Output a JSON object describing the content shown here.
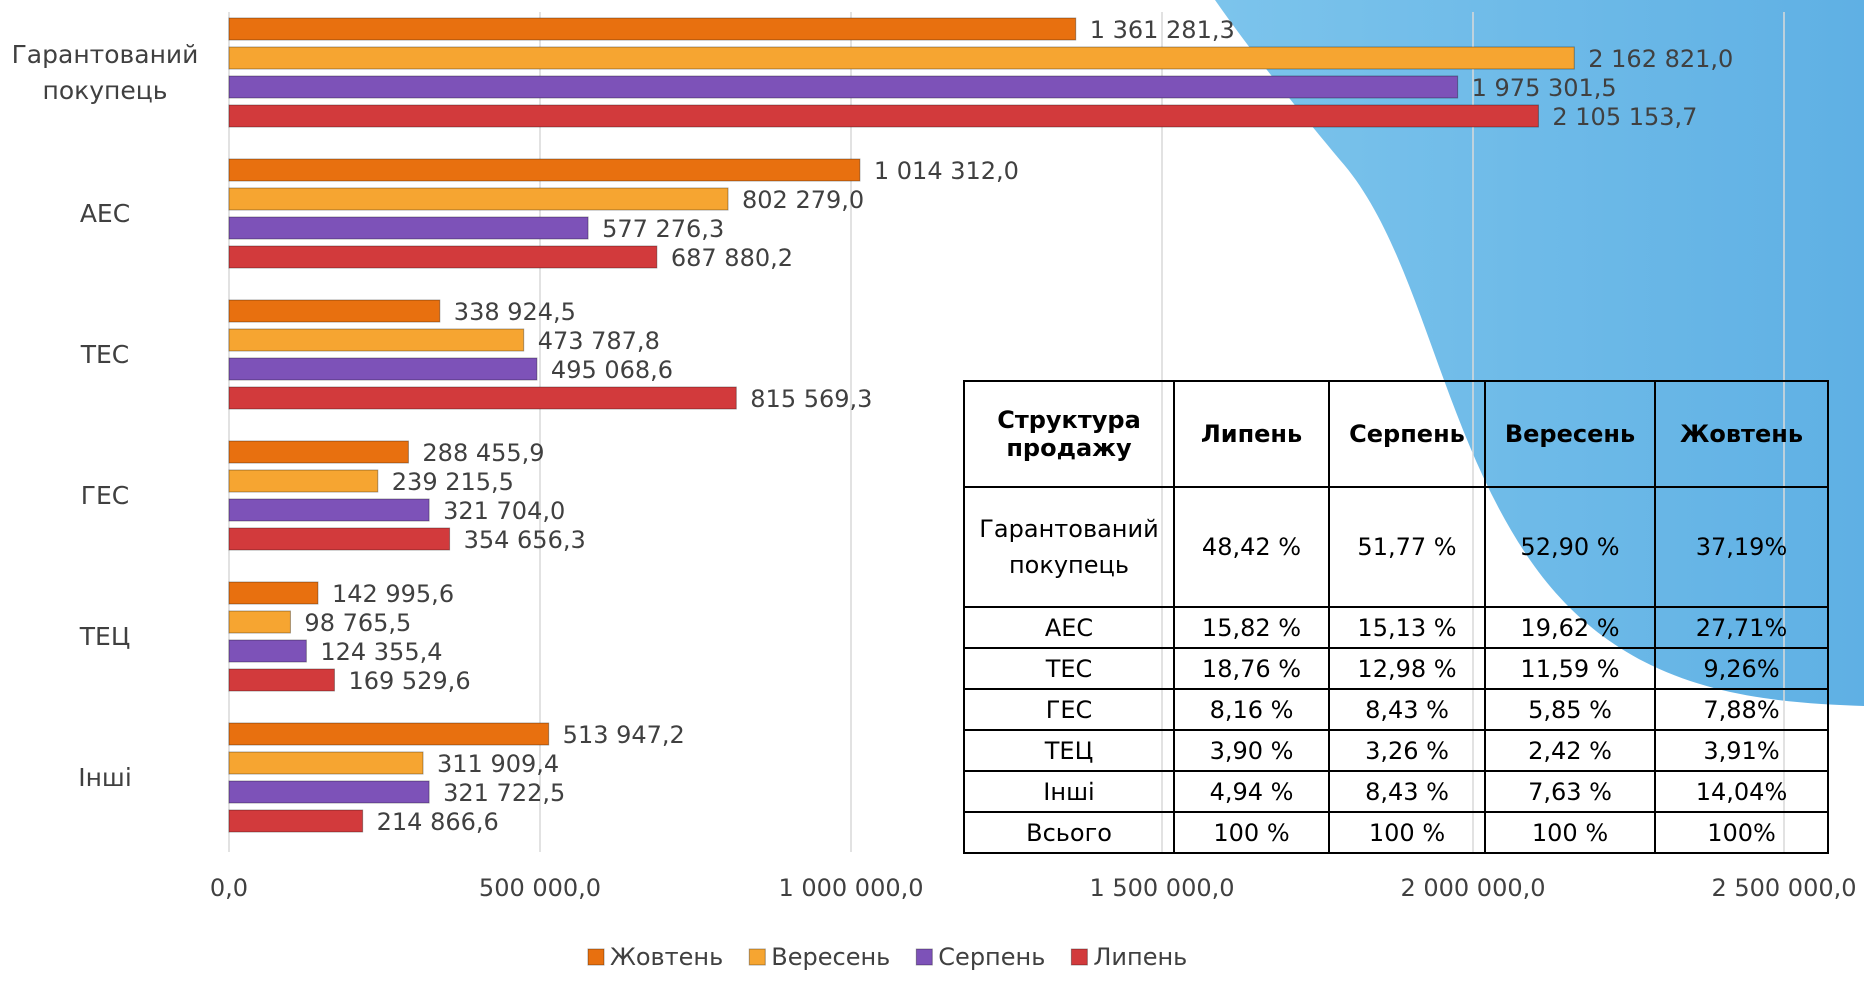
{
  "chart_data": {
    "type": "bar",
    "orientation": "horizontal",
    "categories": [
      "Гарантований покупець",
      "АЕС",
      "ТЕС",
      "ГЕС",
      "ТЕЦ",
      "Інші"
    ],
    "series": [
      {
        "name": "Жовтень",
        "color": "#e8700f",
        "values": [
          1361281.3,
          1014312.0,
          338924.5,
          288455.9,
          142995.6,
          513947.2
        ],
        "value_labels": [
          "1 361 281,3",
          "1 014 312,0",
          "338 924,5",
          "288 455,9",
          "142 995,6",
          "513 947,2"
        ]
      },
      {
        "name": "Вересень",
        "color": "#f6a531",
        "values": [
          2162821.0,
          802279.0,
          473787.8,
          239215.5,
          98765.5,
          311909.4
        ],
        "value_labels": [
          "2 162 821,0",
          "802 279,0",
          "473 787,8",
          "239 215,5",
          "98 765,5",
          "311 909,4"
        ]
      },
      {
        "name": "Серпень",
        "color": "#7d52b8",
        "values": [
          1975301.5,
          577276.3,
          495068.6,
          321704.0,
          124355.4,
          321722.5
        ],
        "value_labels": [
          "1 975 301,5",
          "577 276,3",
          "495 068,6",
          "321 704,0",
          "124 355,4",
          "321 722,5"
        ]
      },
      {
        "name": "Липень",
        "color": "#d23a3c",
        "values": [
          2105153.7,
          687880.2,
          815569.3,
          354656.3,
          169529.6,
          214866.6
        ],
        "value_labels": [
          "2 105 153,7",
          "687 880,2",
          "815 569,3",
          "354 656,3",
          "169 529,6",
          "214 866,6"
        ]
      }
    ],
    "xlim": [
      0,
      2500000
    ],
    "xticks": [
      {
        "value": 0,
        "label": "0,0"
      },
      {
        "value": 500000,
        "label": "500 000,0"
      },
      {
        "value": 1000000,
        "label": "1 000 000,0"
      },
      {
        "value": 1500000,
        "label": "1 500 000,0"
      },
      {
        "value": 2000000,
        "label": "2 000 000,0"
      },
      {
        "value": 2500000,
        "label": "2 500 000,0"
      }
    ],
    "grid": true,
    "legend": "bottom"
  },
  "table": {
    "header": [
      "Структура продажу",
      "Липень",
      "Серпень",
      "Вересень",
      "Жовтень"
    ],
    "rows": [
      [
        "Гарантований покупець",
        "48,42 %",
        "51,77 %",
        "52,90 %",
        "37,19%"
      ],
      [
        "АЕС",
        "15,82 %",
        "15,13 %",
        "19,62 %",
        "27,71%"
      ],
      [
        "ТЕС",
        "18,76 %",
        "12,98 %",
        "11,59 %",
        "9,26%"
      ],
      [
        "ГЕС",
        "8,16 %",
        "8,43 %",
        "5,85 %",
        "7,88%"
      ],
      [
        "ТЕЦ",
        "3,90 %",
        "3,26 %",
        "2,42 %",
        "3,91%"
      ],
      [
        "Інші",
        "4,94 %",
        "8,43 %",
        "7,63 %",
        "14,04%"
      ],
      [
        "Всього",
        "100 %",
        "100 %",
        "100 %",
        "100%"
      ]
    ]
  }
}
